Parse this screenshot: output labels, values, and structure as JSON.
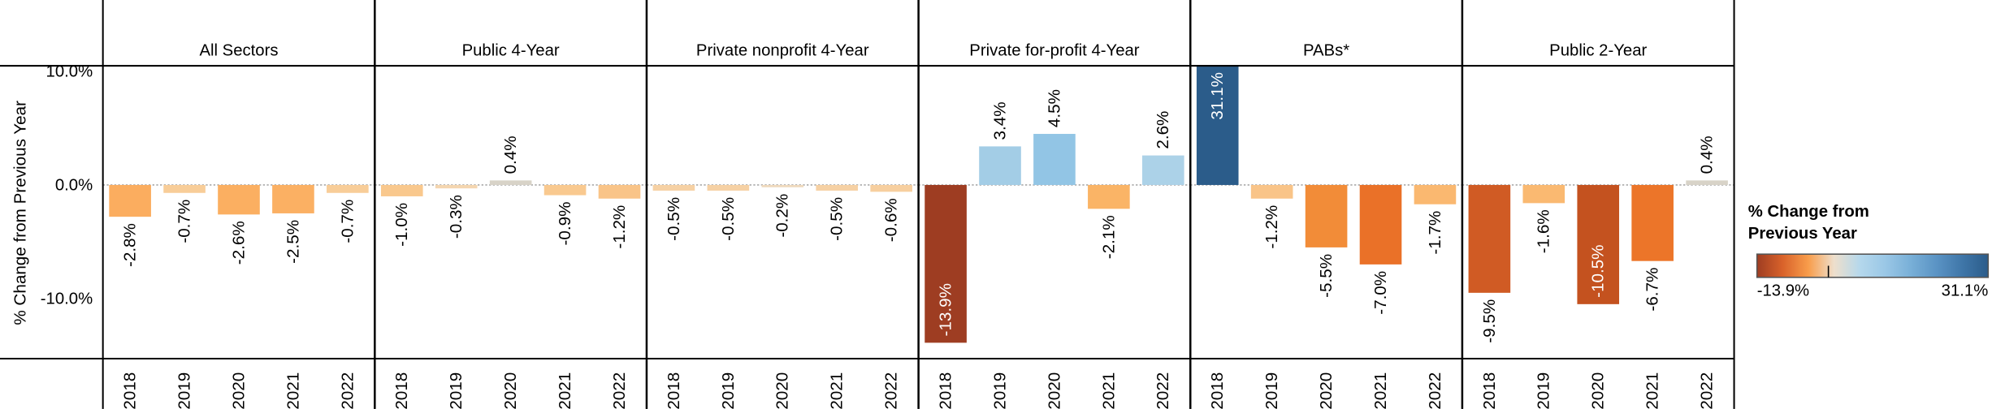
{
  "chart_data": {
    "type": "bar",
    "y_label": "% Change from Previous Year",
    "ylim": [
      -15.3,
      10.5
    ],
    "yticks": [
      {
        "value": 10,
        "label": "10.0%"
      },
      {
        "value": 0,
        "label": "0.0%"
      },
      {
        "value": -10,
        "label": "-10.0%"
      }
    ],
    "panels": [
      {
        "title": "All Sectors",
        "categories": [
          "2018",
          "2019",
          "2020",
          "2021",
          "2022"
        ],
        "values": [
          -2.8,
          -0.7,
          -2.6,
          -2.5,
          -0.7
        ],
        "value_labels": [
          "-2.8%",
          "-0.7%",
          "-2.6%",
          "-2.5%",
          "-0.7%"
        ],
        "colors": [
          "#fbad5f",
          "#f8cd98",
          "#fbaf61",
          "#fbb063",
          "#f8cd98"
        ]
      },
      {
        "title": "Public 4-Year",
        "categories": [
          "2018",
          "2019",
          "2020",
          "2021",
          "2022"
        ],
        "values": [
          -1.0,
          -0.3,
          0.4,
          -0.9,
          -1.2
        ],
        "value_labels": [
          "-1.0%",
          "-0.3%",
          "0.4%",
          "-0.9%",
          "-1.2%"
        ],
        "colors": [
          "#f9c88d",
          "#f4d6b0",
          "#d8d3c8",
          "#f9c98f",
          "#f9c488"
        ]
      },
      {
        "title": "Private nonprofit 4-Year",
        "categories": [
          "2018",
          "2019",
          "2020",
          "2021",
          "2022"
        ],
        "values": [
          -0.5,
          -0.5,
          -0.2,
          -0.5,
          -0.6
        ],
        "value_labels": [
          "-0.5%",
          "-0.5%",
          "-0.2%",
          "-0.5%",
          "-0.6%"
        ],
        "colors": [
          "#f6d1a4",
          "#f6d1a4",
          "#efd9bd",
          "#f6d1a4",
          "#f7cf9f"
        ]
      },
      {
        "title": "Private for-profit 4-Year",
        "categories": [
          "2018",
          "2019",
          "2020",
          "2021",
          "2022"
        ],
        "values": [
          -13.9,
          3.4,
          4.5,
          -2.1,
          2.6
        ],
        "value_labels": [
          "-13.9%",
          "3.4%",
          "4.5%",
          "-2.1%",
          "2.6%"
        ],
        "colors": [
          "#9e3d22",
          "#a3cde6",
          "#92c5e5",
          "#fab466",
          "#acd2e8"
        ]
      },
      {
        "title": "PABs*",
        "categories": [
          "2018",
          "2019",
          "2020",
          "2021",
          "2022"
        ],
        "values": [
          31.1,
          -1.2,
          -5.5,
          -7.0,
          -1.7
        ],
        "value_labels": [
          "31.1%",
          "-1.2%",
          "-5.5%",
          "-7.0%",
          "-1.7%"
        ],
        "colors": [
          "#2b5c8a",
          "#f9c488",
          "#f28c38",
          "#ea7128",
          "#fab870"
        ]
      },
      {
        "title": "Public 2-Year",
        "categories": [
          "2018",
          "2019",
          "2020",
          "2021",
          "2022"
        ],
        "values": [
          -9.5,
          -1.6,
          -10.5,
          -6.7,
          0.4
        ],
        "value_labels": [
          "-9.5%",
          "-1.6%",
          "-10.5%",
          "-6.7%",
          "0.4%"
        ],
        "colors": [
          "#d05b24",
          "#fab971",
          "#c4521f",
          "#ec7529",
          "#d8d3c8"
        ]
      }
    ],
    "colorbar": {
      "title": "% Change from Previous Year",
      "range": [
        -13.9,
        31.1
      ],
      "range_labels": [
        "-13.9%",
        "31.1%"
      ],
      "colors": [
        "#9e3d22",
        "#d9622a",
        "#f89d4b",
        "#eedfcc",
        "#b5d8ec",
        "#9ac7e6",
        "#78afd7",
        "#5a93c4",
        "#3f76a8",
        "#2b5c8a"
      ]
    }
  }
}
